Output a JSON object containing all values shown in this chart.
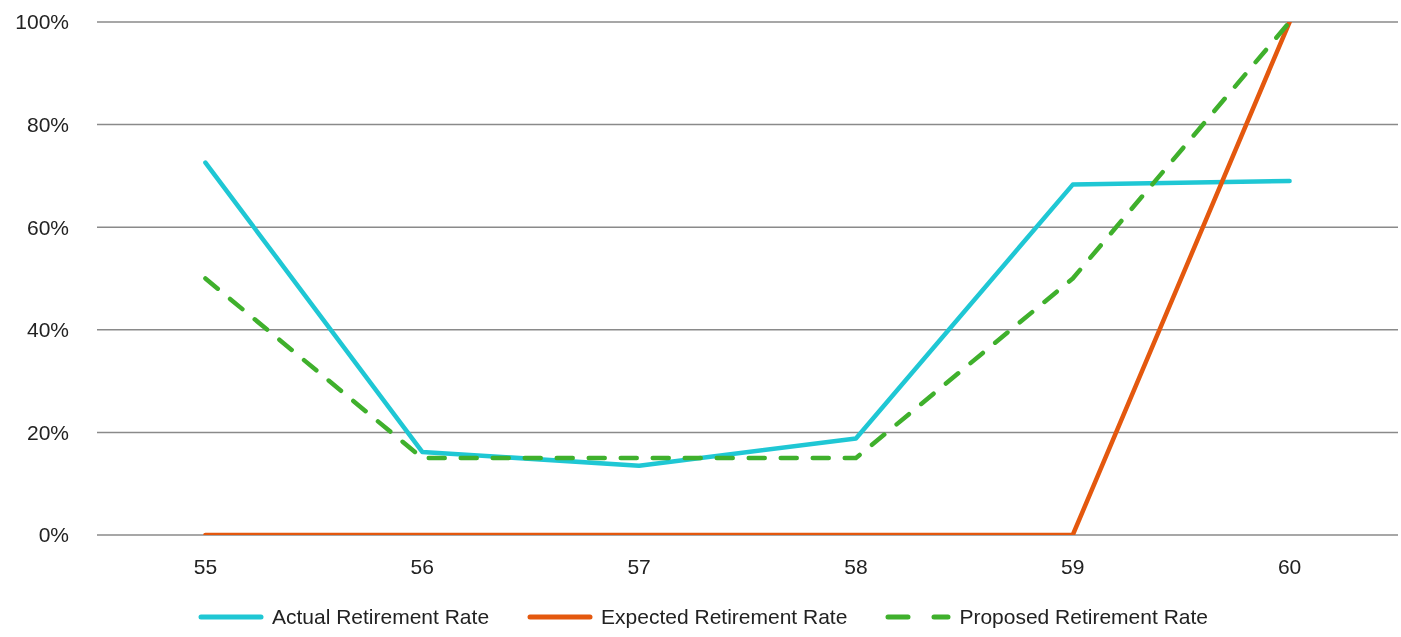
{
  "chart_data": {
    "type": "line",
    "categories": [
      "55",
      "56",
      "57",
      "58",
      "59",
      "60"
    ],
    "series": [
      {
        "name": "Actual Retirement Rate",
        "color": "#1fc7d4",
        "values": [
          72.6,
          16.2,
          13.5,
          18.8,
          68.3,
          69
        ]
      },
      {
        "name": "Expected Retirement Rate",
        "color": "#e4580e",
        "values": [
          0,
          0,
          0,
          0,
          0,
          100
        ]
      },
      {
        "name": "Proposed Retirement Rate",
        "color": "#3fb02c",
        "line_style": "dashed",
        "values": [
          50,
          15,
          15,
          15,
          50,
          100
        ]
      }
    ],
    "ylim": [
      0,
      100
    ],
    "yticks": [
      {
        "value": 0,
        "label": "0%"
      },
      {
        "value": 20,
        "label": "20%"
      },
      {
        "value": 40,
        "label": "40%"
      },
      {
        "value": 60,
        "label": "60%"
      },
      {
        "value": 80,
        "label": "80%"
      },
      {
        "value": 100,
        "label": "100%"
      }
    ],
    "grid": "y",
    "legend": "bottom"
  }
}
